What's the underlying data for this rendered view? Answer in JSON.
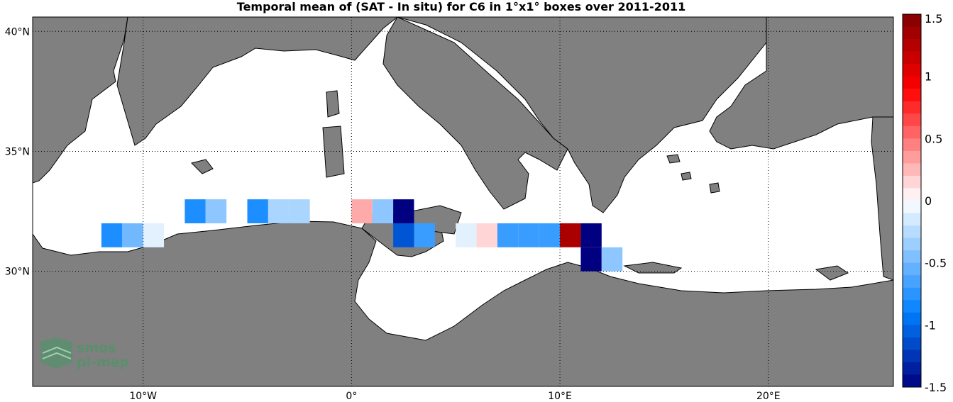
{
  "title": "Temporal mean of (SAT - In situ) for C6 in 1°x1° boxes over 2011-2011",
  "map": {
    "x_ticks": [
      "10°W",
      "0°",
      "10°E",
      "20°E"
    ],
    "y_ticks": [
      "40°N",
      "35°N",
      "30°N"
    ],
    "land_color": "#808080",
    "sea_color": "#ffffff"
  },
  "colorbar": {
    "ticks": [
      "1.5",
      "1",
      "0.5",
      "0",
      "-0.5",
      "-1",
      "-1.5"
    ],
    "min": -1.5,
    "max": 1.5
  },
  "logo": {
    "line1": "smos",
    "line2": "pi-mep"
  },
  "chart_data": {
    "type": "heatmap",
    "title": "Temporal mean of (SAT - In situ) for C6 in 1°x1° boxes over 2011-2011",
    "units": "lon/lat degrees",
    "xlim": [
      -15.3,
      26
    ],
    "ylim": [
      25.2,
      40.6
    ],
    "cells": [
      {
        "lon": -12,
        "lat": 31,
        "value": -0.8
      },
      {
        "lon": -11,
        "lat": 31,
        "value": -0.5
      },
      {
        "lon": -10,
        "lat": 31,
        "value": -0.1
      },
      {
        "lon": -8,
        "lat": 32,
        "value": -0.8
      },
      {
        "lon": -7,
        "lat": 32,
        "value": -0.4
      },
      {
        "lon": -5,
        "lat": 32,
        "value": -0.8
      },
      {
        "lon": -4,
        "lat": 32,
        "value": -0.3
      },
      {
        "lon": -3,
        "lat": 32,
        "value": -0.3
      },
      {
        "lon": 0,
        "lat": 32,
        "value": 0.3
      },
      {
        "lon": 1,
        "lat": 32,
        "value": -0.4
      },
      {
        "lon": 2,
        "lat": 32,
        "value": -1.5
      },
      {
        "lon": 2,
        "lat": 31,
        "value": -1.1
      },
      {
        "lon": 3,
        "lat": 31,
        "value": -0.7
      },
      {
        "lon": 5,
        "lat": 31,
        "value": -0.1
      },
      {
        "lon": 6,
        "lat": 31,
        "value": 0.15
      },
      {
        "lon": 7,
        "lat": 31,
        "value": -0.7
      },
      {
        "lon": 8,
        "lat": 31,
        "value": -0.7
      },
      {
        "lon": 9,
        "lat": 31,
        "value": -0.7
      },
      {
        "lon": 10,
        "lat": 31,
        "value": 1.3
      },
      {
        "lon": 11,
        "lat": 31,
        "value": -1.5
      },
      {
        "lon": 11,
        "lat": 30,
        "value": -1.5
      },
      {
        "lon": 12,
        "lat": 30,
        "value": -0.4
      }
    ]
  }
}
